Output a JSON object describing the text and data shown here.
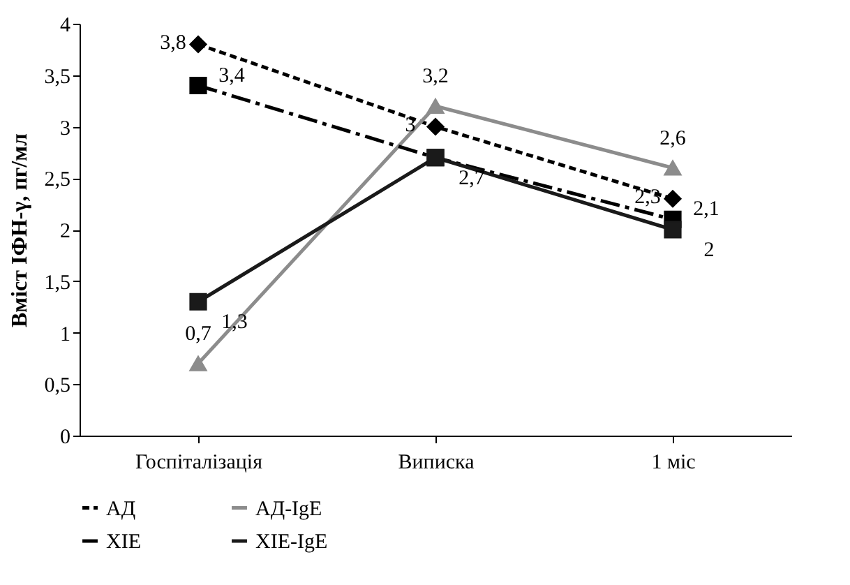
{
  "chart_data": {
    "type": "line",
    "ylabel": "Вміст ІФН-γ, пг/мл",
    "categories": [
      "Госпіталізація",
      "Виписка",
      "1 міс"
    ],
    "ylim": [
      0,
      4
    ],
    "yticks": [
      0,
      {
        "value": 0.5,
        "label": "0,5"
      },
      1,
      {
        "value": 1.5,
        "label": "1,5"
      },
      2,
      {
        "value": 2.5,
        "label": "2,5"
      },
      3,
      {
        "value": 3.5,
        "label": "3,5"
      },
      4
    ],
    "grid": false,
    "legend": "bottom",
    "series": [
      {
        "name": "АД",
        "color": "#000000",
        "marker": "diamond",
        "line_style": "dashed",
        "values": [
          3.8,
          3,
          2.3
        ],
        "value_labels": [
          "3,8",
          "3",
          "2,3"
        ]
      },
      {
        "name": "АД-IgE",
        "color": "#8c8c8c",
        "marker": "triangle",
        "line_style": "solid",
        "values": [
          0.7,
          3.2,
          2.6
        ],
        "value_labels": [
          "0,7",
          "3,2",
          "2,6"
        ]
      },
      {
        "name": "ХІЕ",
        "color": "#000000",
        "marker": "square",
        "line_style": "dashdot",
        "values": [
          3.4,
          2.7,
          2.1
        ],
        "value_labels": [
          "3,4",
          null,
          "2,1"
        ]
      },
      {
        "name": "ХІЕ-IgE",
        "color": "#1a1a1a",
        "marker": "square",
        "line_style": "solid",
        "values": [
          1.3,
          2.7,
          2
        ],
        "value_labels": [
          "1,3",
          "2,7",
          "2"
        ]
      }
    ]
  }
}
